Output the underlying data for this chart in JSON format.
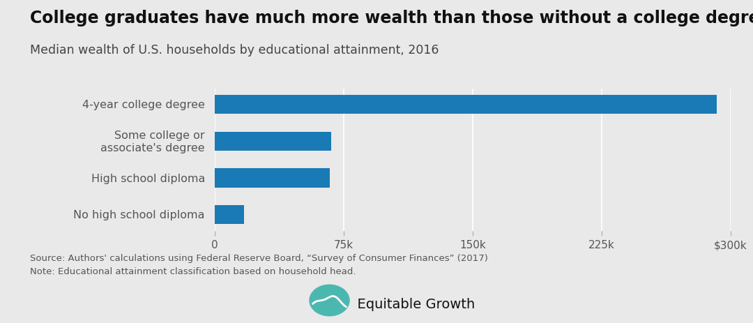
{
  "title": "College graduates have much more wealth than those without a college degree",
  "subtitle": "Median wealth of U.S. households by educational attainment, 2016",
  "categories": [
    "4-year college degree",
    "Some college or\nassociate's degree",
    "High school diploma",
    "No high school diploma"
  ],
  "values": [
    292100,
    67800,
    67100,
    17150
  ],
  "bar_color": "#1a7ab5",
  "background_color": "#e9e9e9",
  "xlim": [
    0,
    300000
  ],
  "xtick_values": [
    0,
    75000,
    150000,
    225000,
    300000
  ],
  "xtick_labels": [
    "0",
    "75k",
    "150k",
    "225k",
    "$300k"
  ],
  "source_text": "Source: Authors' calculations using Federal Reserve Board, “Survey of Consumer Finances” (2017)\nNote: Educational attainment classification based on household head.",
  "title_fontsize": 17,
  "subtitle_fontsize": 12.5,
  "label_fontsize": 11.5,
  "tick_fontsize": 11,
  "source_fontsize": 9.5,
  "logo_color": "#4bb8b0",
  "logo_text": "Equitable Growth",
  "logo_fontsize": 14
}
